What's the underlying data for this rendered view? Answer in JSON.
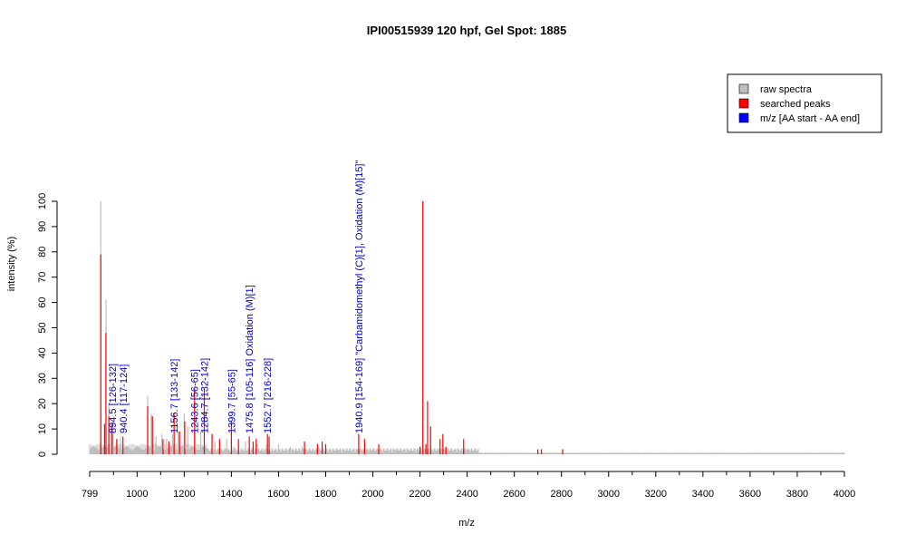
{
  "chart_data": {
    "type": "bar",
    "title": "IPI00515939  120 hpf, Gel Spot: 1885",
    "xlabel": "m/z",
    "ylabel": "intensity (%)",
    "xlim": [
      799,
      4000
    ],
    "ylim": [
      0,
      100
    ],
    "x_ticks": [
      799,
      1000,
      1200,
      1400,
      1600,
      1800,
      2000,
      2200,
      2400,
      2600,
      2800,
      3000,
      3200,
      3400,
      3600,
      3800,
      4000
    ],
    "y_ticks": [
      0,
      10,
      20,
      30,
      40,
      50,
      60,
      70,
      80,
      90,
      100
    ],
    "legend": {
      "position": "top-right",
      "entries": [
        {
          "label": "raw spectra",
          "color": "#bebebe"
        },
        {
          "label": "searched peaks",
          "color": "#ff0000"
        },
        {
          "label": "m/z [AA start - AA end]",
          "color": "#0000ff"
        }
      ]
    },
    "series": [
      {
        "name": "raw spectra",
        "color": "#bebebe",
        "points": [
          [
            846,
            100
          ],
          [
            868,
            61
          ],
          [
            880,
            20
          ],
          [
            890,
            10
          ],
          [
            898,
            8
          ],
          [
            913,
            6
          ],
          [
            930,
            7
          ],
          [
            1045,
            23
          ],
          [
            1060,
            16
          ],
          [
            1080,
            7
          ],
          [
            1105,
            8
          ],
          [
            1125,
            6
          ],
          [
            1150,
            8
          ],
          [
            1175,
            9
          ],
          [
            1200,
            16
          ],
          [
            1215,
            11
          ],
          [
            1245,
            10
          ],
          [
            1270,
            9
          ],
          [
            1330,
            5
          ],
          [
            1380,
            6
          ],
          [
            1410,
            3
          ],
          [
            1460,
            5
          ],
          [
            1510,
            4
          ],
          [
            1550,
            4
          ],
          [
            1600,
            4
          ],
          [
            1650,
            3
          ],
          [
            1700,
            3
          ],
          [
            1770,
            3
          ],
          [
            1850,
            2
          ],
          [
            1950,
            2
          ],
          [
            2000,
            2
          ],
          [
            2100,
            2
          ],
          [
            2200,
            3
          ],
          [
            2300,
            2
          ],
          [
            2400,
            2
          ]
        ]
      },
      {
        "name": "searched peaks",
        "color": "#ff0000",
        "points": [
          [
            846,
            79
          ],
          [
            862,
            12
          ],
          [
            868,
            48
          ],
          [
            880,
            15
          ],
          [
            894,
            12
          ],
          [
            914,
            6
          ],
          [
            940,
            7
          ],
          [
            1045,
            19
          ],
          [
            1065,
            15
          ],
          [
            1110,
            6
          ],
          [
            1135,
            5
          ],
          [
            1157,
            16
          ],
          [
            1180,
            9
          ],
          [
            1202,
            13
          ],
          [
            1244,
            26
          ],
          [
            1285,
            26
          ],
          [
            1318,
            8
          ],
          [
            1350,
            6
          ],
          [
            1400,
            13
          ],
          [
            1430,
            6
          ],
          [
            1476,
            7
          ],
          [
            1492,
            5
          ],
          [
            1505,
            6
          ],
          [
            1553,
            8
          ],
          [
            1560,
            7
          ],
          [
            1710,
            5
          ],
          [
            1765,
            4
          ],
          [
            1785,
            5
          ],
          [
            1800,
            4
          ],
          [
            1940,
            8
          ],
          [
            1965,
            6
          ],
          [
            2025,
            4
          ],
          [
            2200,
            3
          ],
          [
            2212,
            100
          ],
          [
            2225,
            4
          ],
          [
            2232,
            21
          ],
          [
            2245,
            11
          ],
          [
            2285,
            6
          ],
          [
            2297,
            8
          ],
          [
            2310,
            3
          ],
          [
            2385,
            6
          ],
          [
            2700,
            2
          ],
          [
            2715,
            2
          ],
          [
            2805,
            2
          ]
        ]
      }
    ],
    "annotations": [
      {
        "x": 894.5,
        "label": "894.5 [126-132]"
      },
      {
        "x": 940.4,
        "label": "940.4 [117-124]"
      },
      {
        "x": 1156.7,
        "label": "1156.7 [133-142]"
      },
      {
        "x": 1243.6,
        "label": "1243.6 [56-65]"
      },
      {
        "x": 1284.7,
        "label": "1284.7 [132-142]"
      },
      {
        "x": 1399.7,
        "label": "1399.7 [55-65]"
      },
      {
        "x": 1475.8,
        "label": "1475.8 [105-116] Oxidation (M)[1]"
      },
      {
        "x": 1552.7,
        "label": "1552.7 [216-228]"
      },
      {
        "x": 1940.9,
        "label": "1940.9 [154-169] \"Carbamidomethyl (C)[1], Oxidation (M)[15]\""
      }
    ]
  }
}
